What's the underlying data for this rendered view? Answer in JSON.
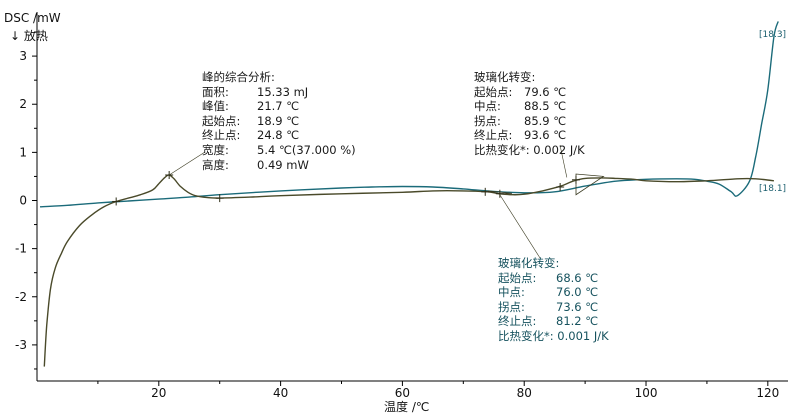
{
  "axes": {
    "y_title": "DSC /mW",
    "y_subtitle": "↓ 放热",
    "x_title": "温度 /℃"
  },
  "peak_annotation": {
    "title": "峰的综合分析:",
    "rows": [
      {
        "key": "面积:",
        "value": "15.33 mJ"
      },
      {
        "key": "峰值:",
        "value": "21.7 ℃"
      },
      {
        "key": "起始点:",
        "value": "18.9 ℃"
      },
      {
        "key": "终止点:",
        "value": "24.8 ℃"
      },
      {
        "key": "宽度:",
        "value": "5.4 ℃(37.000 %)"
      },
      {
        "key": "高度:",
        "value": "0.49 mW"
      }
    ]
  },
  "glass_annotation_1": {
    "title": "玻璃化转变:",
    "rows": [
      {
        "key": "起始点:",
        "value": "79.6 ℃"
      },
      {
        "key": "中点:",
        "value": "88.5 ℃"
      },
      {
        "key": "拐点:",
        "value": "85.9 ℃"
      },
      {
        "key": "终止点:",
        "value": "93.6 ℃"
      }
    ],
    "last_line": "比热变化*:   0.002 J/K"
  },
  "glass_annotation_2": {
    "title": "玻璃化转变:",
    "rows": [
      {
        "key": "起始点:",
        "value": "68.6 ℃"
      },
      {
        "key": "中点:",
        "value": "76.0 ℃"
      },
      {
        "key": "拐点:",
        "value": "73.6 ℃"
      },
      {
        "key": "终止点:",
        "value": "81.2 ℃"
      }
    ],
    "last_line": "比热变化*:   0.001 J/K"
  },
  "colors": {
    "curve_dark": "#4a4a2a",
    "curve_teal": "#1b6b7a",
    "axis": "#000000",
    "text": "#1a1a1a",
    "teal_text": "#16525e"
  },
  "chart_data": {
    "type": "line",
    "xlabel": "温度 /℃",
    "ylabel": "DSC /mW",
    "xlim": [
      0,
      122
    ],
    "ylim": [
      -3.75,
      3.75
    ],
    "x_ticks": [
      20,
      40,
      60,
      80,
      100,
      120
    ],
    "y_ticks": [
      -3,
      -2,
      -1,
      0,
      1,
      2,
      3
    ],
    "grid": false,
    "series": [
      {
        "name": "[18.1]",
        "color": "#4a4a2a",
        "points": [
          [
            1.2,
            -3.45
          ],
          [
            1.6,
            -2.6
          ],
          [
            2.2,
            -1.85
          ],
          [
            3,
            -1.4
          ],
          [
            4,
            -1.1
          ],
          [
            5,
            -0.85
          ],
          [
            7,
            -0.52
          ],
          [
            9,
            -0.3
          ],
          [
            11,
            -0.13
          ],
          [
            13,
            -0.02
          ],
          [
            15,
            0.05
          ],
          [
            17,
            0.12
          ],
          [
            19,
            0.22
          ],
          [
            20,
            0.35
          ],
          [
            21,
            0.48
          ],
          [
            21.7,
            0.53
          ],
          [
            22.5,
            0.45
          ],
          [
            23.5,
            0.3
          ],
          [
            24.8,
            0.17
          ],
          [
            26,
            0.1
          ],
          [
            28,
            0.06
          ],
          [
            30,
            0.05
          ],
          [
            35,
            0.07
          ],
          [
            40,
            0.1
          ],
          [
            50,
            0.14
          ],
          [
            60,
            0.17
          ],
          [
            65,
            0.2
          ],
          [
            70,
            0.2
          ],
          [
            74,
            0.18
          ],
          [
            76,
            0.14
          ],
          [
            78,
            0.12
          ],
          [
            80,
            0.13
          ],
          [
            83,
            0.2
          ],
          [
            86,
            0.3
          ],
          [
            88,
            0.4
          ],
          [
            90,
            0.46
          ],
          [
            93,
            0.47
          ],
          [
            95,
            0.46
          ],
          [
            98,
            0.44
          ],
          [
            100,
            0.41
          ],
          [
            105,
            0.39
          ],
          [
            110,
            0.41
          ],
          [
            115,
            0.45
          ],
          [
            118,
            0.45
          ],
          [
            121,
            0.41
          ]
        ]
      },
      {
        "name": "[18.3]",
        "color": "#1b6b7a",
        "points": [
          [
            0.5,
            -0.13
          ],
          [
            5,
            -0.1
          ],
          [
            10,
            -0.05
          ],
          [
            15,
            -0.01
          ],
          [
            20,
            0.03
          ],
          [
            25,
            0.07
          ],
          [
            30,
            0.12
          ],
          [
            40,
            0.2
          ],
          [
            50,
            0.26
          ],
          [
            55,
            0.28
          ],
          [
            60,
            0.29
          ],
          [
            65,
            0.28
          ],
          [
            70,
            0.24
          ],
          [
            75,
            0.19
          ],
          [
            80,
            0.16
          ],
          [
            85,
            0.18
          ],
          [
            90,
            0.3
          ],
          [
            95,
            0.4
          ],
          [
            100,
            0.44
          ],
          [
            105,
            0.45
          ],
          [
            108,
            0.44
          ],
          [
            110,
            0.4
          ],
          [
            112,
            0.34
          ],
          [
            114,
            0.18
          ],
          [
            115,
            0.1
          ],
          [
            117,
            0.4
          ],
          [
            118,
            0.9
          ],
          [
            119,
            1.6
          ],
          [
            120,
            2.3
          ],
          [
            121,
            3.4
          ],
          [
            121.7,
            3.72
          ]
        ]
      }
    ],
    "markers": [
      {
        "x": 13,
        "y": -0.02,
        "series": "[18.1]"
      },
      {
        "x": 21.7,
        "y": 0.53,
        "series": "[18.1]"
      },
      {
        "x": 30,
        "y": 0.05,
        "series": "[18.1]"
      },
      {
        "x": 73.6,
        "y": 0.18,
        "series": "[18.1]"
      },
      {
        "x": 76,
        "y": 0.14,
        "series": "[18.1]"
      },
      {
        "x": 85.9,
        "y": 0.28,
        "series": "[18.1]"
      },
      {
        "x": 88.5,
        "y": 0.43,
        "series": "[18.1]"
      }
    ],
    "glass_triangles": [
      {
        "onset": [
          74,
          0.2
        ],
        "mid": [
          76,
          0.14
        ],
        "end": [
          78,
          0.15
        ]
      },
      {
        "onset": [
          88.5,
          0.55
        ],
        "mid": [
          88.5,
          0.12
        ],
        "end": [
          93,
          0.5
        ]
      }
    ]
  }
}
